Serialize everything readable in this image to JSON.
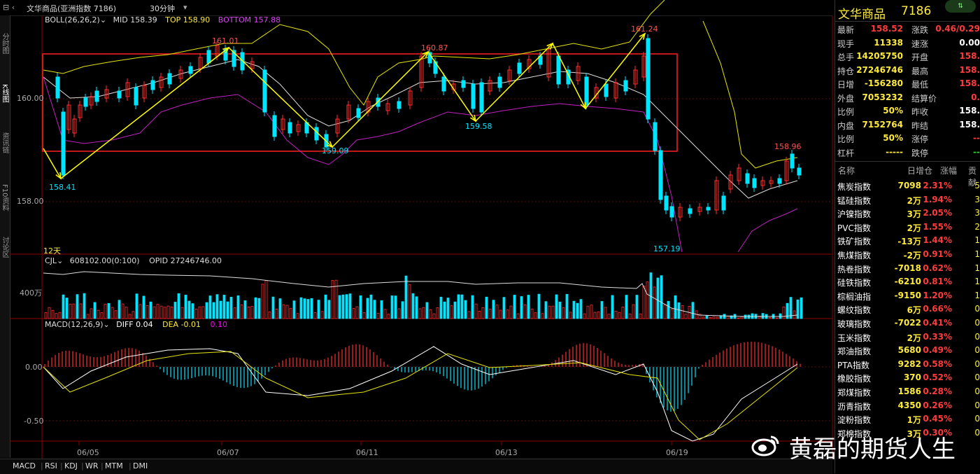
{
  "window": {
    "title": "文华商品(亚洲指数 7186)",
    "period": "30分钟"
  },
  "left_tabs": [
    "分时图",
    "K线图",
    "资讯链",
    "F10资料",
    "讨论区"
  ],
  "boll": {
    "label": "BOLL(26,26,2)",
    "mid": "MID 158.39",
    "top": "TOP 158.90",
    "bottom": "BOTTOM 157.88"
  },
  "y_axis_main": [
    "160.00",
    "158.00"
  ],
  "annotations": {
    "p1": "158.41",
    "p2": "161.01",
    "p3": "159.09",
    "p4": "160.87",
    "p5": "159.58",
    "p6": "161.24",
    "p7": "157.19",
    "p8": "158.96"
  },
  "days_label": "12天",
  "cjl": {
    "label": "CJL",
    "vol": "608102.00(0:100)",
    "opi": "OPID 27246746.00",
    "axis": "400万"
  },
  "macd": {
    "label": "MACD(12,26,9)",
    "diff": "DIFF 0.04",
    "dea": "DEA -0.01",
    "macd": "0.10",
    "axis_zero": "0.00",
    "axis_neg": "-0.50"
  },
  "x_axis": [
    "06/05",
    "06/07",
    "06/11",
    "06/13",
    "06/19"
  ],
  "bottom_tabs": [
    "MACD",
    "RSI",
    "KDJ",
    "WR",
    "MTM",
    "DMI"
  ],
  "quote": {
    "name": "文华商品",
    "code": "7186",
    "rows": [
      {
        "l1": "最新",
        "v1": "158.52",
        "l2": "涨跌",
        "v2": "0.46/0.29"
      },
      {
        "l1": "现手",
        "v1": "11338",
        "l2": "速涨",
        "v2": "0.00"
      },
      {
        "l1": "总手",
        "v1": "14205750",
        "l2": "开盘",
        "v2": "158."
      },
      {
        "l1": "持仓",
        "v1": "27246746",
        "l2": "最高",
        "v2": "158."
      },
      {
        "l1": "日增",
        "v1": "-156280",
        "l2": "最低",
        "v2": "158."
      },
      {
        "l1": "外盘",
        "v1": "7053232",
        "l2": "结算价",
        "v2": "0."
      },
      {
        "l1": "比例",
        "v1": "50%",
        "l2": "昨收",
        "v2": "158."
      },
      {
        "l1": "内盘",
        "v1": "7152764",
        "l2": "昨结",
        "v2": "158."
      },
      {
        "l1": "比例",
        "v1": "50%",
        "l2": "涨停",
        "v2": "--"
      },
      {
        "l1": "杠杆",
        "v1": "-----",
        "l2": "跌停",
        "v2": "--"
      }
    ]
  },
  "list_header": {
    "name": "名称",
    "inc": "日增仓",
    "chg": "涨幅",
    "con": "贡献"
  },
  "list": [
    {
      "name": "焦炭指数",
      "inc": "7098",
      "chg": "2.31%",
      "c": "5"
    },
    {
      "name": "锰硅指数",
      "inc": "2万",
      "chg": "1.94%",
      "c": "3"
    },
    {
      "name": "沪镍指数",
      "inc": "3万",
      "chg": "2.05%",
      "c": "3"
    },
    {
      "name": "PVC指数",
      "inc": "2万",
      "chg": "1.55%",
      "c": "2"
    },
    {
      "name": "铁矿指数",
      "inc": "-13万",
      "chg": "1.44%",
      "c": "1"
    },
    {
      "name": "焦煤指数",
      "inc": "-2万",
      "chg": "0.91%",
      "c": "1"
    },
    {
      "name": "热卷指数",
      "inc": "-7018",
      "chg": "0.62%",
      "c": "1"
    },
    {
      "name": "硅铁指数",
      "inc": "-6210",
      "chg": "0.81%",
      "c": "1"
    },
    {
      "name": "棕榈油指",
      "inc": "-9150",
      "chg": "1.20%",
      "c": "1"
    },
    {
      "name": "螺纹指数",
      "inc": "6万",
      "chg": "0.66%",
      "c": "0"
    },
    {
      "name": "玻璃指数",
      "inc": "-7022",
      "chg": "0.41%",
      "c": "0"
    },
    {
      "name": "玉米指数",
      "inc": "2万",
      "chg": "0.33%",
      "c": "0"
    },
    {
      "name": "郑油指数",
      "inc": "5680",
      "chg": "0.49%",
      "c": "0"
    },
    {
      "name": "PTA指数",
      "inc": "9282",
      "chg": "0.58%",
      "c": "0"
    },
    {
      "name": "橡胶指数",
      "inc": "370",
      "chg": "0.52%",
      "c": "0"
    },
    {
      "name": "郑煤指数",
      "inc": "1586",
      "chg": "0.28%",
      "c": "0"
    },
    {
      "name": "沥青指数",
      "inc": "4350",
      "chg": "0.26%",
      "c": "0"
    },
    {
      "name": "淀粉指数",
      "inc": "1万",
      "chg": "0.45%",
      "c": "0"
    },
    {
      "name": "郑棉指数",
      "inc": "3万",
      "chg": "0.30%",
      "c": "0"
    }
  ],
  "watermark": "黄磊的期货人生"
}
